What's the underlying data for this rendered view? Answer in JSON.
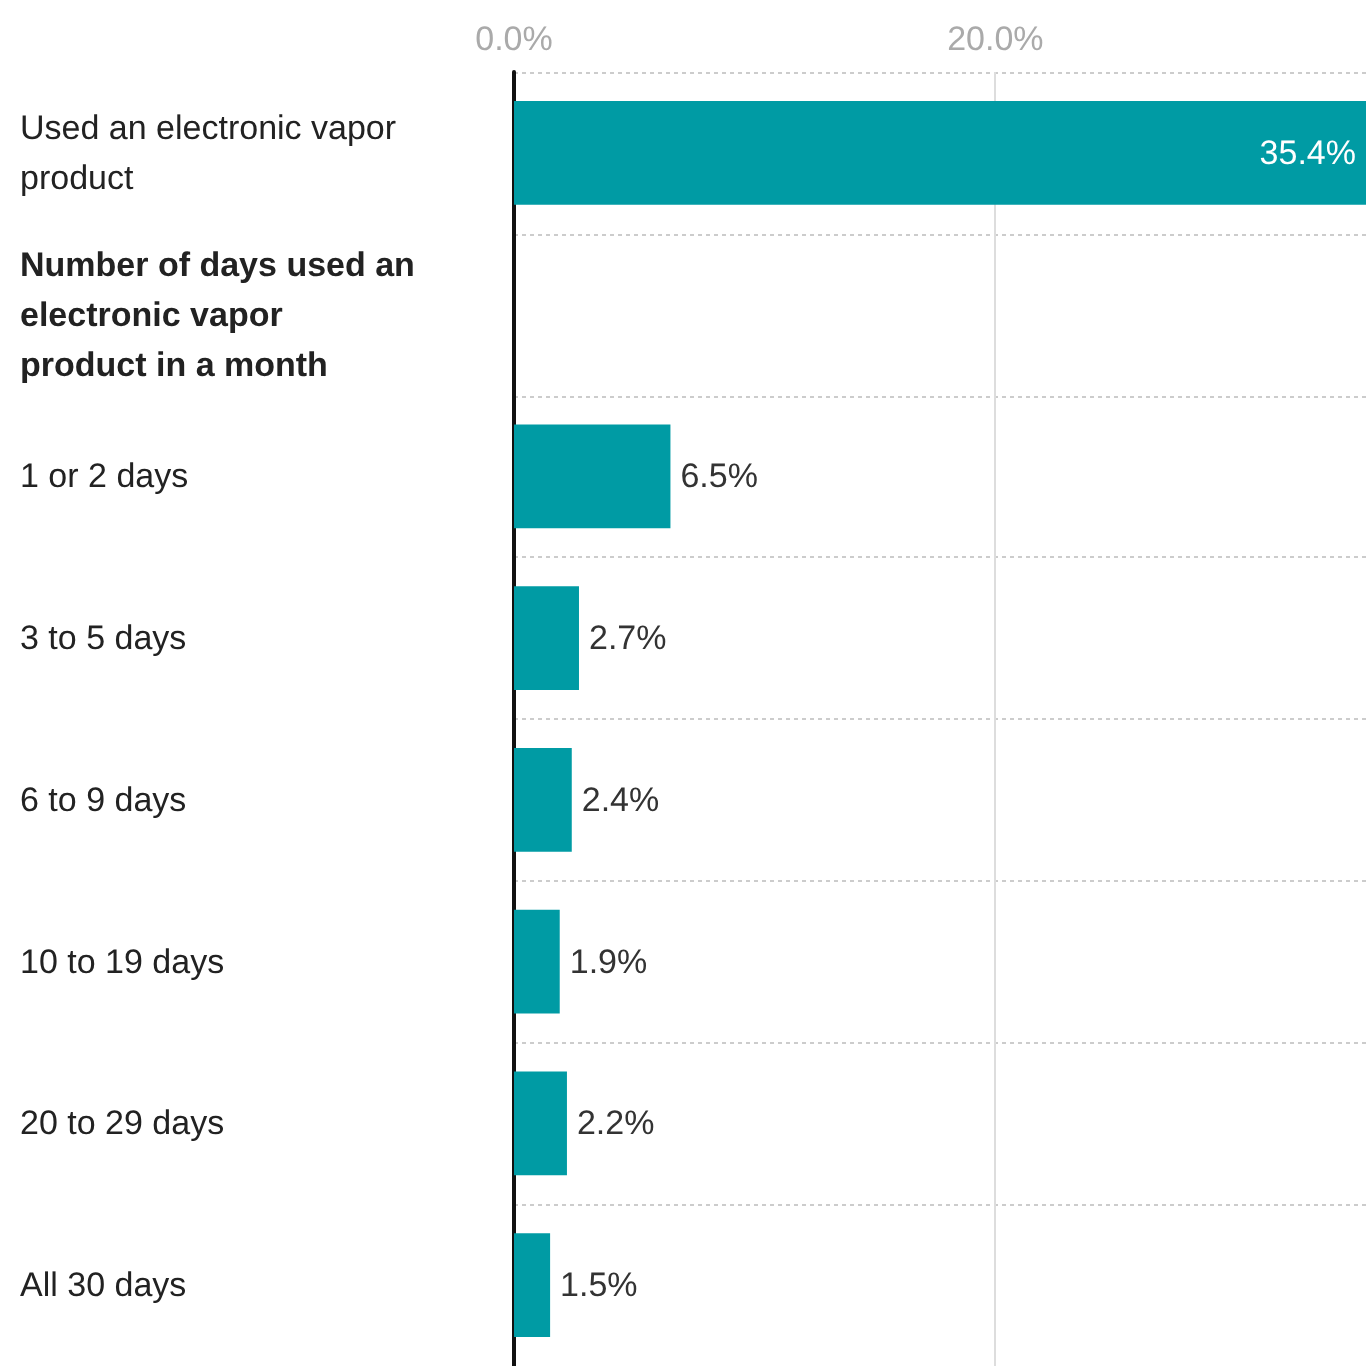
{
  "chart_data": {
    "type": "bar",
    "orientation": "horizontal",
    "categories": [
      "Used an electronic vapor product",
      "Number of days used an electronic vapor product in a month",
      "1 or 2 days",
      "3 to 5 days",
      "6 to 9 days",
      "10 to 19 days",
      "20 to 29 days",
      "All 30 days"
    ],
    "values": [
      35.4,
      null,
      6.5,
      2.7,
      2.4,
      1.9,
      2.2,
      1.5
    ],
    "value_labels": [
      "35.4%",
      null,
      "6.5%",
      "2.7%",
      "2.4%",
      "1.9%",
      "2.2%",
      "1.5%"
    ],
    "color": "#009ba4",
    "xlim": [
      0,
      35.4
    ],
    "xticks": [
      {
        "value": 0,
        "label": "0.0%"
      },
      {
        "value": 20,
        "label": "20.0%"
      }
    ],
    "grid": true
  }
}
